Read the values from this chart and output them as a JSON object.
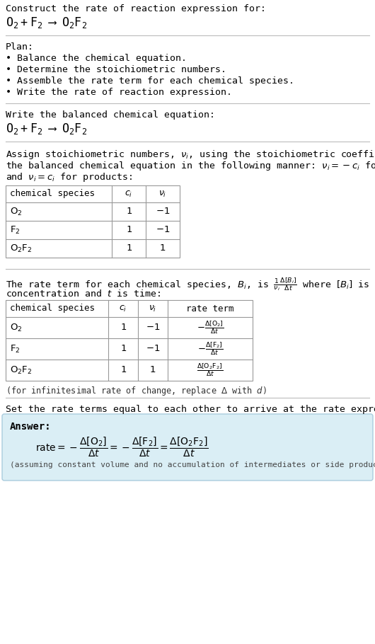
{
  "title_line1": "Construct the rate of reaction expression for:",
  "plan_header": "Plan:",
  "plan_items": [
    "• Balance the chemical equation.",
    "• Determine the stoichiometric numbers.",
    "• Assemble the rate term for each chemical species.",
    "• Write the rate of reaction expression."
  ],
  "balanced_header": "Write the balanced chemical equation:",
  "set_equal_text": "Set the rate terms equal to each other to arrive at the rate expression:",
  "answer_label": "Answer:",
  "answer_note": "(assuming constant volume and no accumulation of intermediates or side products)",
  "bg_color": "#ffffff",
  "answer_box_color": "#daeef5",
  "answer_box_border": "#aaccdd",
  "table_border_color": "#999999",
  "text_color": "#000000",
  "mono_font": "DejaVu Sans Mono",
  "serif_font": "DejaVu Serif"
}
